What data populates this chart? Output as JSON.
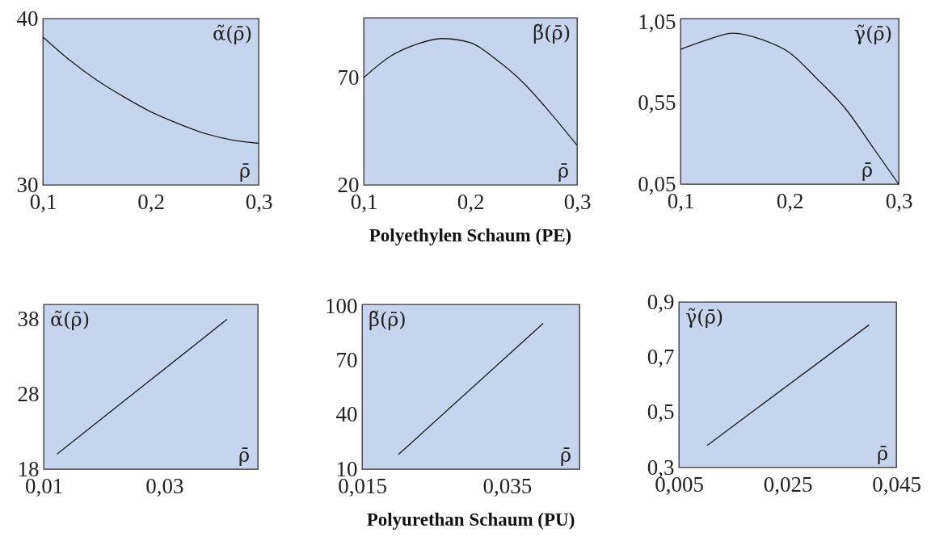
{
  "chart_data": [
    {
      "type": "line",
      "ylabel": "α̃(ρ̄)",
      "xlabel": "ρ̄",
      "x": [
        0.1,
        0.125,
        0.15,
        0.175,
        0.2,
        0.225,
        0.25,
        0.275,
        0.3
      ],
      "xlim": [
        0.1,
        0.3
      ],
      "ylim": [
        30,
        40
      ],
      "xticks": [
        {
          "value": 0.1,
          "label": "0,1"
        },
        {
          "value": 0.2,
          "label": "0,2"
        },
        {
          "value": 0.3,
          "label": "0,3"
        }
      ],
      "yticks": [
        30,
        40
      ],
      "series": [
        {
          "color": "#1a1a1a",
          "values": [
            38.9,
            37.5,
            36.3,
            35.3,
            34.4,
            33.7,
            33.1,
            32.7,
            32.5
          ]
        }
      ]
    },
    {
      "type": "line",
      "ylabel": "β̃(ρ̄)",
      "xlabel": "ρ̄",
      "title": "Polyethylen Schaum (PE)",
      "x": [
        0.1,
        0.125,
        0.15,
        0.173,
        0.2,
        0.225,
        0.25,
        0.275,
        0.3
      ],
      "xlim": [
        0.1,
        0.3
      ],
      "ylim": [
        20,
        98
      ],
      "xticks": [
        {
          "value": 0.1,
          "label": "0,1"
        },
        {
          "value": 0.2,
          "label": "0,2"
        },
        {
          "value": 0.3,
          "label": "0,3"
        }
      ],
      "yticks": [
        20,
        70
      ],
      "series": [
        {
          "color": "#1a1a1a",
          "values": [
            70,
            80,
            85.7,
            88.3,
            86.4,
            78.2,
            67.5,
            53.6,
            38.5
          ]
        }
      ]
    },
    {
      "type": "line",
      "ylabel": "γ̃(ρ̄)",
      "xlabel": "ρ̄",
      "x": [
        0.1,
        0.125,
        0.148,
        0.175,
        0.2,
        0.225,
        0.25,
        0.275,
        0.3
      ],
      "xlim": [
        0.1,
        0.3
      ],
      "ylim": [
        0.05,
        1.07
      ],
      "xticks": [
        {
          "value": 0.1,
          "label": "0,1"
        },
        {
          "value": 0.2,
          "label": "0,2"
        },
        {
          "value": 0.3,
          "label": "0,3"
        }
      ],
      "yticks": [
        {
          "value": 0.05,
          "label": "0,05"
        },
        {
          "value": 0.55,
          "label": "0,55"
        },
        {
          "value": 1.05,
          "label": "1,05"
        }
      ],
      "series": [
        {
          "color": "#1a1a1a",
          "values": [
            0.88,
            0.94,
            0.98,
            0.94,
            0.86,
            0.7,
            0.525,
            0.29,
            0.05
          ]
        }
      ]
    },
    {
      "type": "line",
      "ylabel": "α̃(ρ̄)",
      "xlabel": "ρ̄",
      "x": [
        0.0122,
        0.0404
      ],
      "xlim": [
        0.01,
        0.0455
      ],
      "ylim": [
        18,
        40
      ],
      "xticks": [
        {
          "value": 0.01,
          "label": "0,01"
        },
        {
          "value": 0.03,
          "label": "0,03"
        }
      ],
      "yticks": [
        18,
        28,
        38
      ],
      "series": [
        {
          "color": "#1a1a1a",
          "values": [
            20,
            38
          ]
        }
      ]
    },
    {
      "type": "line",
      "ylabel": "β̃(ρ̄)",
      "xlabel": "ρ̄",
      "title": "Polyurethan Schaum (PU)",
      "x": [
        0.02,
        0.04
      ],
      "xlim": [
        0.015,
        0.045
      ],
      "ylim": [
        10,
        101
      ],
      "xticks": [
        {
          "value": 0.015,
          "label": "0,015"
        },
        {
          "value": 0.035,
          "label": "0,035"
        }
      ],
      "yticks": [
        10,
        40,
        70,
        100
      ],
      "series": [
        {
          "color": "#1a1a1a",
          "values": [
            18,
            90.5
          ]
        }
      ]
    },
    {
      "type": "line",
      "ylabel": "γ̃(ρ̄)",
      "xlabel": "ρ̄",
      "x": [
        0.0102,
        0.04
      ],
      "xlim": [
        0.005,
        0.045
      ],
      "ylim": [
        0.3,
        0.9
      ],
      "xticks": [
        {
          "value": 0.005,
          "label": "0,005"
        },
        {
          "value": 0.025,
          "label": "0,025"
        },
        {
          "value": 0.045,
          "label": "0,045"
        }
      ],
      "yticks": [
        {
          "value": 0.3,
          "label": "0,3"
        },
        {
          "value": 0.5,
          "label": "0,5"
        },
        {
          "value": 0.7,
          "label": "0,7"
        },
        {
          "value": 0.9,
          "label": "0,9"
        }
      ],
      "series": [
        {
          "color": "#1a1a1a",
          "values": [
            0.38,
            0.817
          ]
        }
      ]
    }
  ]
}
